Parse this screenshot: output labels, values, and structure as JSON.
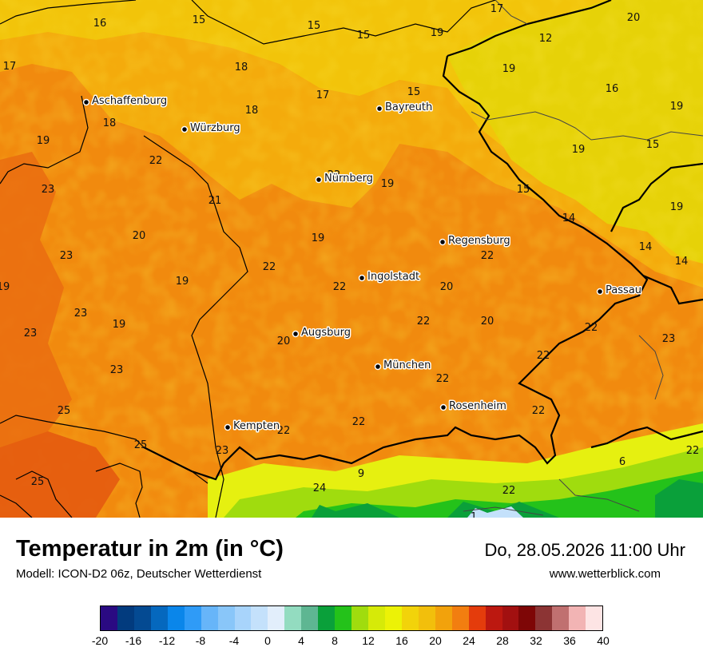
{
  "title": "Temperatur in 2m (in °C)",
  "model": "Modell: ICON-D2 06z, Deutscher Wetterdienst",
  "datetime": "Do, 28.05.2026 11:00 Uhr",
  "website": "www.wetterblick.com",
  "colors": {
    "temp_14": "#e6d208",
    "temp_18": "#f2c40a",
    "temp_20": "#f4ab0c",
    "temp_22": "#f18a0e",
    "temp_24": "#ea6c10",
    "alpine_green": "#3cbb28",
    "alpine_yellow": "#e6f010"
  },
  "legend": {
    "colors": [
      "#2a0a82",
      "#023b7e",
      "#044a92",
      "#0568be",
      "#0a86ea",
      "#2f9bf7",
      "#67b5f9",
      "#89c6f9",
      "#a8d4fb",
      "#c4e1fb",
      "#e2eefb",
      "#93dcc0",
      "#5eb692",
      "#0aa03a",
      "#24c21a",
      "#a0dc0e",
      "#d6ea08",
      "#ecf206",
      "#f2d30a",
      "#f2bf0c",
      "#f2a20c",
      "#f27e10",
      "#e43c0c",
      "#bc1810",
      "#a21010",
      "#7e0606",
      "#8c3434",
      "#c07070",
      "#f2b4b4",
      "#fde4e4"
    ],
    "ticks": [
      "-20",
      "-16",
      "-12",
      "-8",
      "-4",
      "0",
      "4",
      "8",
      "12",
      "16",
      "20",
      "24",
      "28",
      "32",
      "36",
      "40"
    ]
  },
  "cities": [
    {
      "name": "Aschaffenburg"
    },
    {
      "name": "Würzburg"
    },
    {
      "name": "Bayreuth"
    },
    {
      "name": "Nürnberg"
    },
    {
      "name": "Regensburg"
    },
    {
      "name": "Ingolstadt"
    },
    {
      "name": "Passau"
    },
    {
      "name": "Augsburg"
    },
    {
      "name": "München"
    },
    {
      "name": "Rosenheim"
    },
    {
      "name": "Kempten"
    }
  ],
  "temperature_labels": [
    "16",
    "15",
    "15",
    "15",
    "17",
    "18",
    "12",
    "20",
    "17",
    "18",
    "19",
    "17",
    "18",
    "15",
    "16",
    "19",
    "19",
    "19",
    "19",
    "22",
    "15",
    "22",
    "19",
    "23",
    "21",
    "15",
    "14",
    "20",
    "19",
    "19",
    "14",
    "14",
    "23",
    "22",
    "22",
    "22",
    "19",
    "19",
    "20",
    "23",
    "22",
    "23",
    "19",
    "22",
    "20",
    "20",
    "23",
    "22",
    "23",
    "22",
    "25",
    "22",
    "22",
    "22",
    "25",
    "23",
    "6",
    "22",
    "25",
    "24",
    "9",
    "22",
    "1"
  ]
}
